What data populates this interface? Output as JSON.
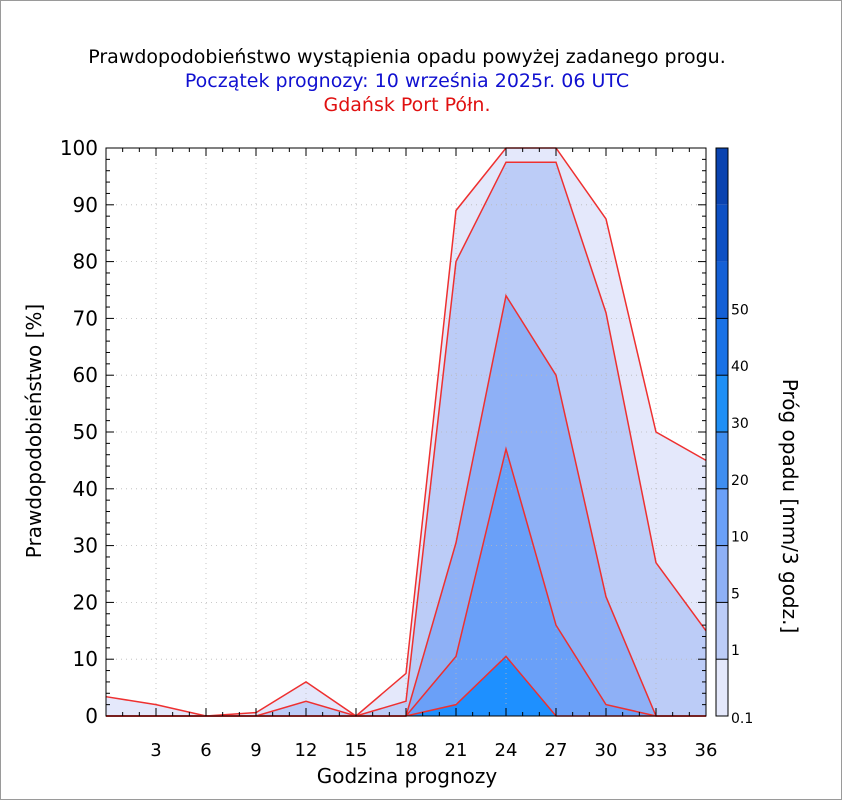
{
  "chart_data": {
    "type": "area",
    "title": "Prawdopodobieństwo wystąpienia opadu powyżej zadanego progu.",
    "subtitle": "Początek prognozy: 10 września 2025r. 06 UTC",
    "location": "Gdańsk Port Półn.",
    "xlabel": "Godzina prognozy",
    "ylabel": "Prawdopodobieństwo [%]",
    "colorbar_label": "Próg opadu [mm/3 godz.]",
    "xlim": [
      0,
      36
    ],
    "ylim": [
      0,
      100
    ],
    "x": [
      0,
      3,
      6,
      9,
      12,
      15,
      18,
      21,
      24,
      27,
      30,
      33,
      36
    ],
    "x_ticks": [
      "3",
      "6",
      "9",
      "12",
      "15",
      "18",
      "21",
      "24",
      "27",
      "30",
      "33",
      "36"
    ],
    "y_ticks": [
      "0",
      "10",
      "20",
      "30",
      "40",
      "50",
      "60",
      "70",
      "80",
      "90",
      "100"
    ],
    "series": [
      {
        "threshold": "0.1",
        "color": "#e4e8fb",
        "values": [
          3.4,
          2,
          0,
          0.6,
          6,
          0,
          7.5,
          89,
          100,
          100,
          87.5,
          50,
          45
        ]
      },
      {
        "threshold": "1",
        "color": "#bcccf7",
        "values": [
          0,
          0,
          0,
          0,
          2.6,
          0,
          2.6,
          80,
          97.5,
          97.5,
          71,
          27,
          15
        ]
      },
      {
        "threshold": "5",
        "color": "#8eb0f6",
        "values": [
          0,
          0,
          0,
          0,
          0,
          0,
          0,
          30.5,
          74,
          60,
          21,
          0,
          0
        ]
      },
      {
        "threshold": "10",
        "color": "#6aa0f8",
        "values": [
          0,
          0,
          0,
          0,
          0,
          0,
          0,
          10.5,
          47,
          16,
          2,
          0,
          0
        ]
      },
      {
        "threshold": "20",
        "color": "#1e90ff",
        "values": [
          0,
          0,
          0,
          0,
          0,
          0,
          0,
          2,
          10.5,
          0,
          0,
          0,
          0
        ]
      }
    ],
    "colorbar": {
      "levels": [
        "0.1",
        "1",
        "5",
        "10",
        "20",
        "30",
        "40",
        "50"
      ],
      "colors": [
        "#e4e8fb",
        "#bcccf7",
        "#8eb0f6",
        "#6aa0f8",
        "#3f8ef0",
        "#1f8ff5",
        "#1a72e6",
        "#1460d6",
        "#0d50c4",
        "#0a43b0"
      ]
    },
    "grid": true
  }
}
